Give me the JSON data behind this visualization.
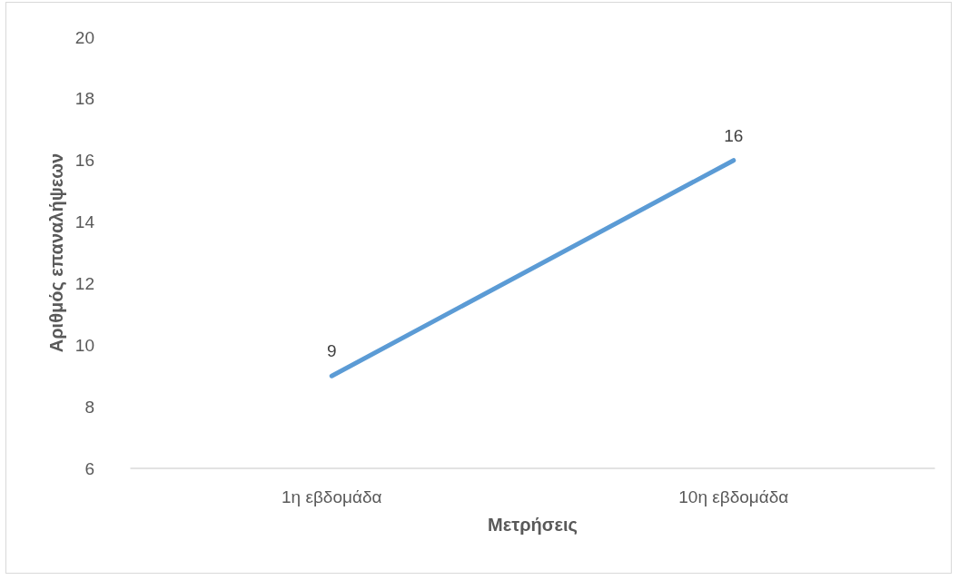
{
  "chart_data": {
    "type": "line",
    "xlabel": "Μετρήσεις",
    "ylabel": "Αριθμός επαναλήψεων",
    "categories": [
      "1η εβδομάδα",
      "10η εβδομάδα"
    ],
    "series": [
      {
        "color": "#5b9bd5",
        "values": [
          9,
          16
        ]
      }
    ],
    "ylim": [
      6,
      20
    ],
    "yticks": [
      6,
      8,
      10,
      12,
      14,
      16,
      18,
      20
    ],
    "grid": false,
    "marker": "none",
    "line_style": "solid",
    "data_labels": true
  }
}
